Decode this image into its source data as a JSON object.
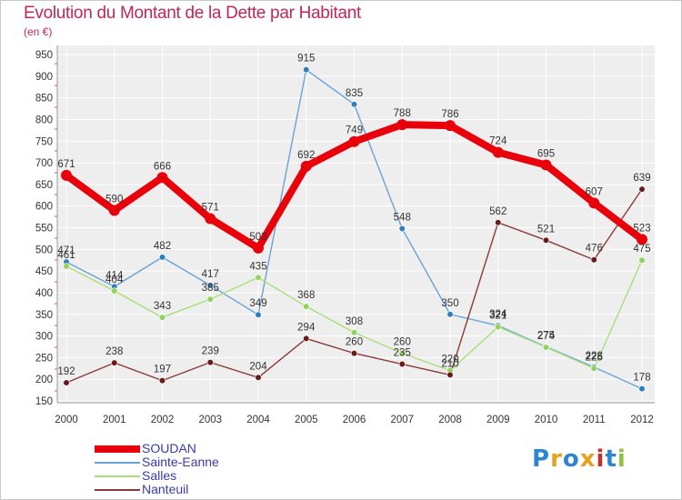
{
  "title": "Evolution du Montant de la Dette par Habitant",
  "unit_label": "(en €)",
  "logo_text": "Proxiti",
  "colors": {
    "title": "#c0265a",
    "plot_bg": "#eeeeee",
    "grid": "#ffffff",
    "axis_text": "#333333",
    "legend_text": "#3a3aa8"
  },
  "chart_data": {
    "type": "line",
    "xlabel": "",
    "ylabel": "",
    "ylim": [
      150,
      950
    ],
    "yticks": [
      150,
      200,
      250,
      300,
      350,
      400,
      450,
      500,
      550,
      600,
      650,
      700,
      750,
      800,
      850,
      900,
      950
    ],
    "x": [
      "2000",
      "2001",
      "2002",
      "2003",
      "2004",
      "2005",
      "2006",
      "2007",
      "2008",
      "2009",
      "2010",
      "2011",
      "2012"
    ],
    "grid": true,
    "legend_position": "bottom-left",
    "series": [
      {
        "name": "SOUDAN",
        "color": "#e8000b",
        "marker": "#e8000b",
        "width": 8,
        "radius": 6,
        "values": [
          671,
          590,
          666,
          571,
          503,
          692,
          749,
          788,
          786,
          724,
          695,
          607,
          523
        ]
      },
      {
        "name": "Sainte-Eanne",
        "color": "#6aa3d5",
        "marker": "#2e7fc1",
        "width": 1.4,
        "radius": 3.3,
        "values": [
          471,
          414,
          482,
          417,
          349,
          915,
          835,
          548,
          350,
          324,
          275,
          228,
          178
        ]
      },
      {
        "name": "Salles",
        "color": "#a8e07a",
        "marker": "#8fd35a",
        "width": 1.4,
        "radius": 3.3,
        "values": [
          461,
          404,
          343,
          385,
          435,
          368,
          308,
          260,
          220,
          321,
          274,
          225,
          475
        ]
      },
      {
        "name": "Nanteuil",
        "color": "#8b3a3a",
        "marker": "#6b1a1a",
        "width": 1.4,
        "radius": 3.3,
        "values": [
          192,
          238,
          197,
          239,
          204,
          294,
          260,
          235,
          210,
          562,
          521,
          476,
          639
        ]
      }
    ]
  }
}
